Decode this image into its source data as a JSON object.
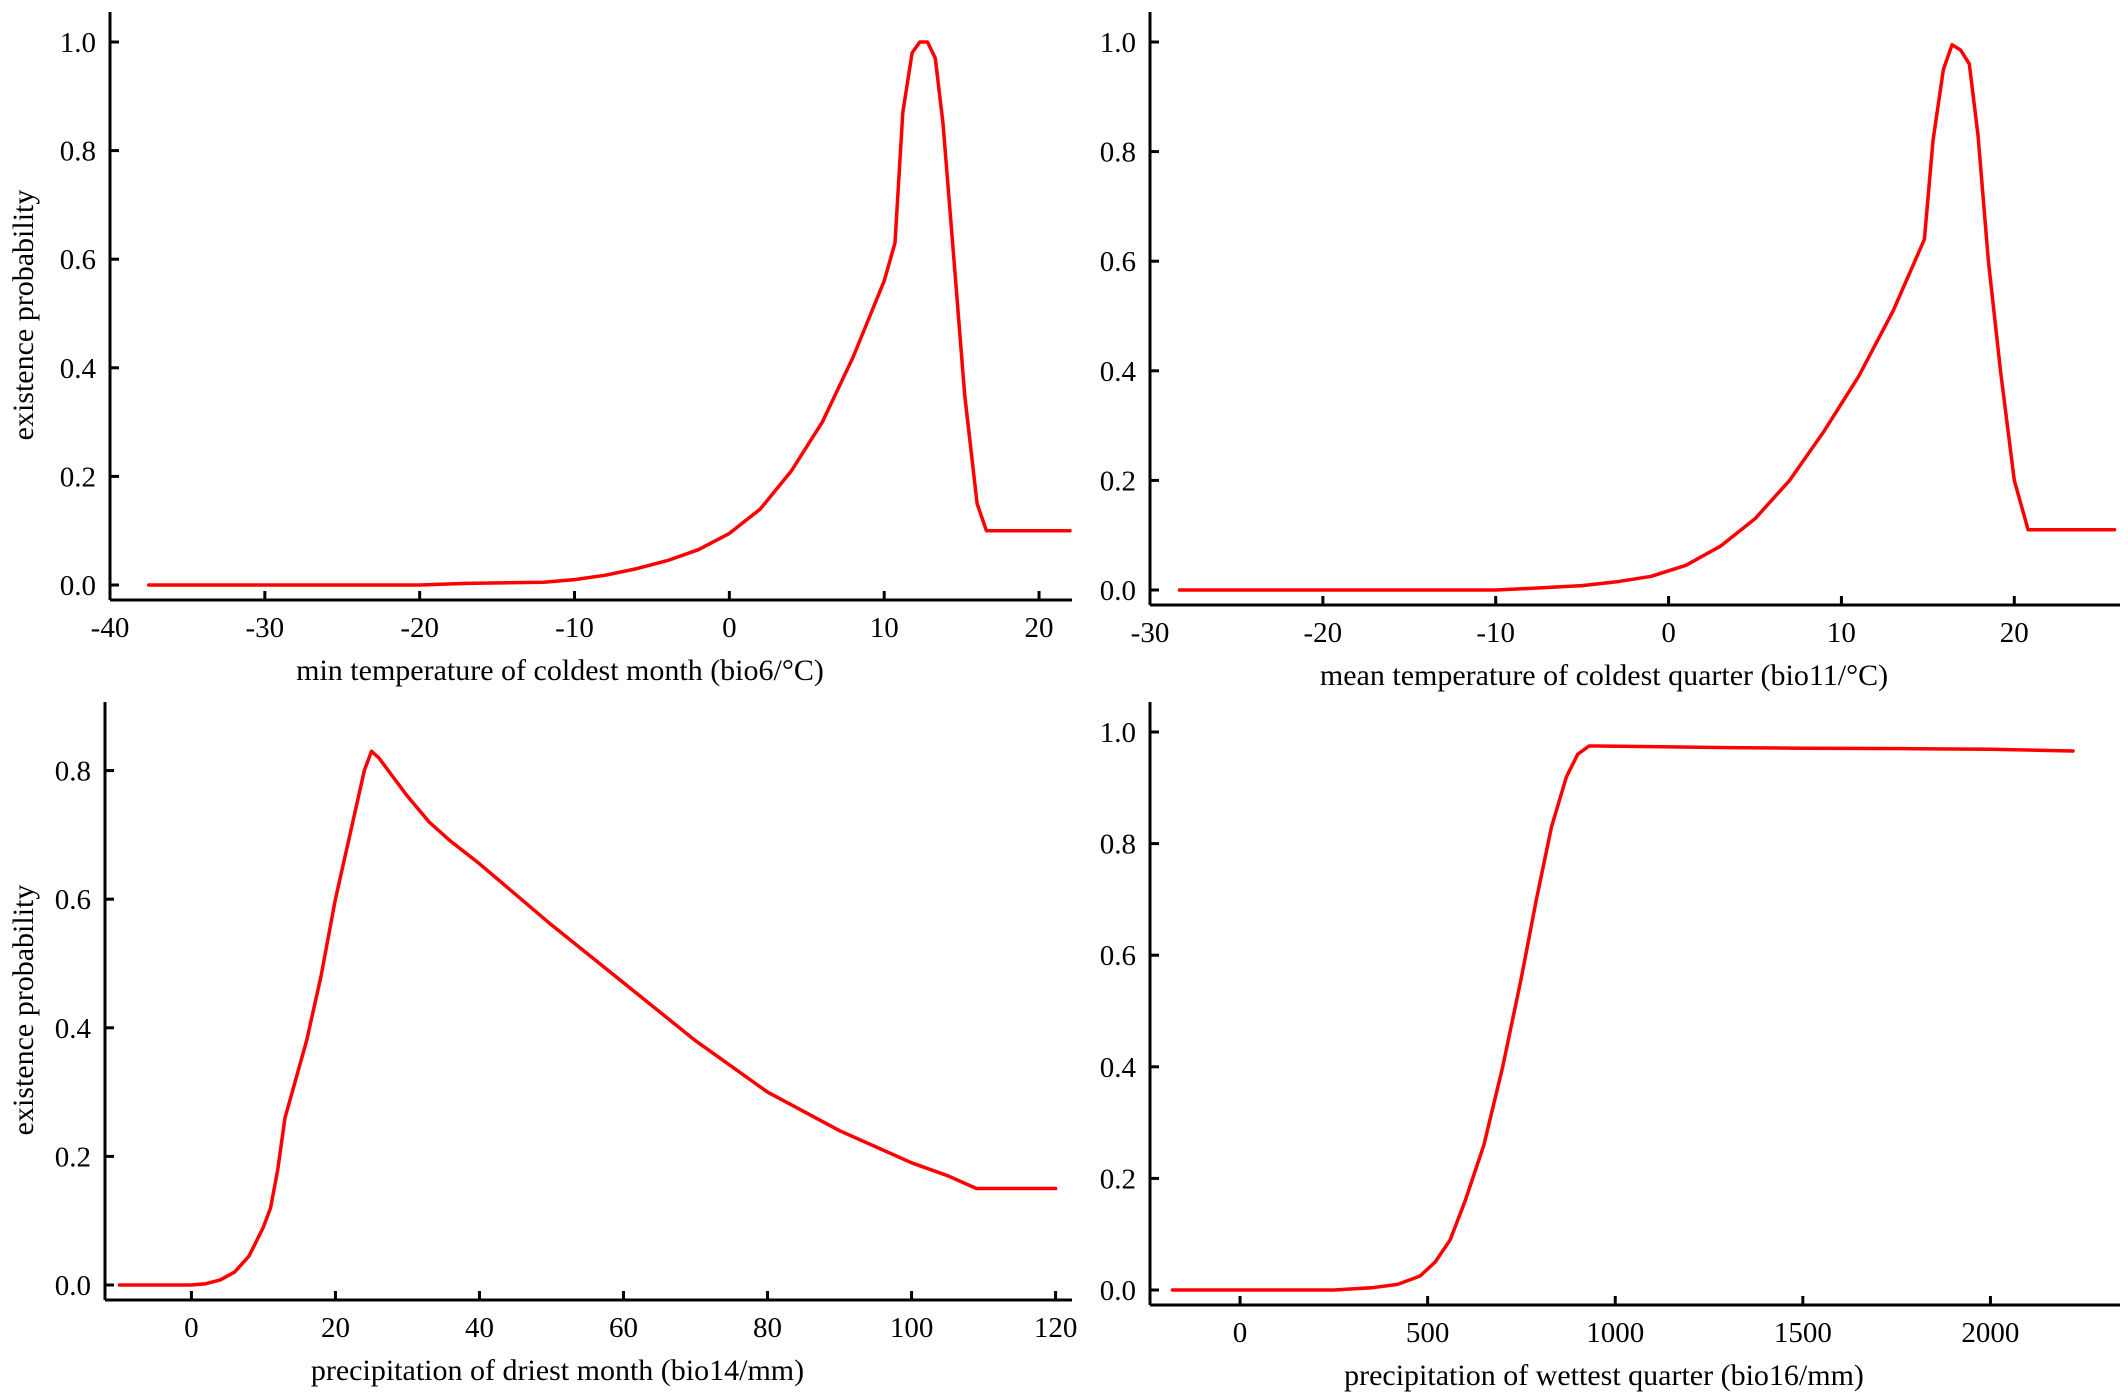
{
  "colors": {
    "series": "#ff0000",
    "axis": "#000000",
    "background": "#ffffff"
  },
  "chart_data": [
    {
      "type": "line",
      "xlabel": "min temperature of coldest month (bio6/°C)",
      "ylabel": "existence probability",
      "xlim": [
        -40,
        22
      ],
      "ylim": [
        0,
        1.0
      ],
      "xticks": [
        -40,
        -30,
        -20,
        -10,
        0,
        10,
        20
      ],
      "yticks": [
        0.0,
        0.2,
        0.4,
        0.6,
        0.8,
        1.0
      ],
      "xtick_labels": [
        "-40",
        "-30",
        "-20",
        "-10",
        "0",
        "10",
        "20"
      ],
      "ytick_labels": [
        "0.0",
        "0.2",
        "0.4",
        "0.6",
        "0.8",
        "1.0"
      ],
      "grid": false,
      "series": [
        {
          "x": [
            -37.5,
            -30,
            -20,
            -17,
            -12,
            -10,
            -8,
            -6,
            -4,
            -2,
            0,
            2,
            4,
            6,
            8,
            10,
            10.7,
            11.2,
            11.8,
            12.3,
            12.8,
            13.3,
            13.8,
            14.5,
            15.2,
            16.0,
            16.6,
            17.0,
            22.0
          ],
          "y": [
            0.0,
            0.0,
            0.0,
            0.003,
            0.005,
            0.01,
            0.018,
            0.03,
            0.045,
            0.065,
            0.095,
            0.14,
            0.21,
            0.3,
            0.42,
            0.56,
            0.63,
            0.87,
            0.98,
            1.0,
            1.0,
            0.97,
            0.85,
            0.6,
            0.35,
            0.15,
            0.1,
            0.1,
            0.1
          ]
        }
      ]
    },
    {
      "type": "line",
      "xlabel": "mean temperature of coldest quarter (bio11/°C)",
      "ylabel": "",
      "xlim": [
        -30,
        26
      ],
      "ylim": [
        0,
        1.0
      ],
      "xticks": [
        -30,
        -20,
        -10,
        0,
        10,
        20
      ],
      "yticks": [
        0.0,
        0.2,
        0.4,
        0.6,
        0.8,
        1.0
      ],
      "xtick_labels": [
        "-30",
        "-20",
        "-10",
        "0",
        "10",
        "20"
      ],
      "ytick_labels": [
        "0.0",
        "0.2",
        "0.4",
        "0.6",
        "0.8",
        "1.0"
      ],
      "grid": false,
      "series": [
        {
          "x": [
            -28.3,
            -20,
            -10,
            -8,
            -5,
            -3,
            -1,
            1,
            3,
            5,
            7,
            9,
            11,
            13,
            14.8,
            15.3,
            15.9,
            16.4,
            16.9,
            17.4,
            17.9,
            18.5,
            19.2,
            20.0,
            20.8,
            21.3,
            25.8
          ],
          "y": [
            0.0,
            0.0,
            0.0,
            0.003,
            0.008,
            0.015,
            0.025,
            0.045,
            0.08,
            0.13,
            0.2,
            0.29,
            0.39,
            0.51,
            0.64,
            0.82,
            0.95,
            0.995,
            0.985,
            0.96,
            0.83,
            0.6,
            0.4,
            0.2,
            0.11,
            0.11,
            0.11
          ]
        }
      ]
    },
    {
      "type": "line",
      "xlabel": "precipitation of driest month (bio14/mm)",
      "ylabel": "existence probability",
      "xlim": [
        -12,
        122
      ],
      "ylim": [
        0,
        0.86
      ],
      "xticks": [
        0,
        20,
        40,
        60,
        80,
        100,
        120
      ],
      "yticks": [
        0.0,
        0.2,
        0.4,
        0.6,
        0.8
      ],
      "xtick_labels": [
        "0",
        "20",
        "40",
        "60",
        "80",
        "100",
        "120"
      ],
      "ytick_labels": [
        "0.0",
        "0.2",
        "0.4",
        "0.6",
        "0.8"
      ],
      "grid": false,
      "series": [
        {
          "x": [
            -10,
            0,
            2,
            4,
            6,
            8,
            10,
            11,
            12,
            13,
            14,
            16,
            18,
            20,
            22,
            24,
            25,
            26,
            28,
            30,
            33,
            36,
            40,
            50,
            60,
            70,
            80,
            90,
            100,
            105,
            109,
            120
          ],
          "y": [
            0.0,
            0.0,
            0.002,
            0.008,
            0.02,
            0.045,
            0.09,
            0.12,
            0.18,
            0.26,
            0.3,
            0.38,
            0.48,
            0.6,
            0.7,
            0.8,
            0.83,
            0.82,
            0.79,
            0.76,
            0.72,
            0.69,
            0.655,
            0.56,
            0.47,
            0.38,
            0.3,
            0.24,
            0.19,
            0.17,
            0.15,
            0.15
          ]
        }
      ]
    },
    {
      "type": "line",
      "xlabel": "precipitation of wettest quarter (bio16/mm)",
      "ylabel": "",
      "xlim": [
        -240,
        2340
      ],
      "ylim": [
        0,
        1.0
      ],
      "xticks": [
        0,
        500,
        1000,
        1500,
        2000
      ],
      "yticks": [
        0.0,
        0.2,
        0.4,
        0.6,
        0.8,
        1.0
      ],
      "xtick_labels": [
        "0",
        "500",
        "1000",
        "1500",
        "2000"
      ],
      "ytick_labels": [
        "0.0",
        "0.2",
        "0.4",
        "0.6",
        "0.8",
        "1.0"
      ],
      "grid": false,
      "series": [
        {
          "x": [
            -180,
            250,
            350,
            420,
            480,
            520,
            560,
            600,
            650,
            700,
            750,
            790,
            830,
            870,
            900,
            930,
            950,
            1300,
            1500,
            1800,
            2000,
            2220
          ],
          "y": [
            0.0,
            0.0,
            0.004,
            0.01,
            0.025,
            0.05,
            0.09,
            0.16,
            0.26,
            0.4,
            0.56,
            0.7,
            0.83,
            0.92,
            0.96,
            0.975,
            0.975,
            0.972,
            0.971,
            0.97,
            0.969,
            0.966
          ]
        }
      ]
    }
  ]
}
